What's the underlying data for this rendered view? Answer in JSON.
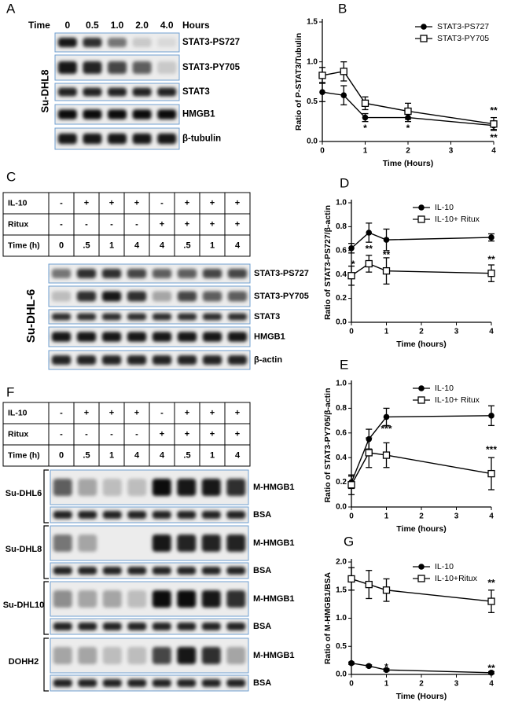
{
  "chart_data": [
    {
      "label": "B",
      "type": "line",
      "x": [
        0,
        0.5,
        1,
        2,
        4
      ],
      "xlim": [
        0,
        4
      ],
      "xticks": [
        0,
        1,
        2,
        3,
        4
      ],
      "ylim": [
        0,
        1.5
      ],
      "yticks": [
        {
          "value": 0,
          "label": "0.0"
        },
        {
          "value": 0.5,
          "label": "0.5"
        },
        {
          "value": 1,
          "label": "1.0"
        },
        {
          "value": 1.5,
          "label": "1.5"
        }
      ],
      "xlabel": "Time (Hours)",
      "ylabel": "Ratio of P-STAT3/Tubulin",
      "legend": "upper right",
      "series": [
        {
          "name": "STAT3-PS727",
          "color": "#000000",
          "marker": "filled-circle",
          "values": [
            0.62,
            0.58,
            0.3,
            0.3,
            0.2
          ],
          "errors": [
            0.12,
            0.12,
            0.05,
            0.05,
            0.05
          ]
        },
        {
          "name": "STAT3-PY705",
          "color": "#000000",
          "marker": "open-square",
          "values": [
            0.83,
            0.88,
            0.48,
            0.38,
            0.22
          ],
          "errors": [
            0.1,
            0.12,
            0.08,
            0.1,
            0.08
          ]
        }
      ],
      "annotations": [
        {
          "text": "*",
          "x": 1,
          "y": 0.16
        },
        {
          "text": "*",
          "x": 2,
          "y": 0.16
        },
        {
          "text": "**",
          "x": 4,
          "y": 0.38
        },
        {
          "text": "**",
          "x": 4,
          "y": 0.04
        }
      ]
    },
    {
      "label": "D",
      "type": "line",
      "x": [
        0,
        0.5,
        1,
        4
      ],
      "xlim": [
        0,
        4
      ],
      "xticks": [
        0,
        1,
        2,
        3,
        4
      ],
      "ylim": [
        0,
        1
      ],
      "yticks": [
        {
          "value": 0,
          "label": "0.0"
        },
        {
          "value": 0.2,
          "label": "0.2"
        },
        {
          "value": 0.4,
          "label": "0.4"
        },
        {
          "value": 0.6,
          "label": "0.6"
        },
        {
          "value": 0.8,
          "label": "0.8"
        },
        {
          "value": 1,
          "label": "1.0"
        }
      ],
      "xlabel": "Time (hours)",
      "ylabel": "Ratio of STAT3-PS727/β-actin",
      "legend": "upper right",
      "series": [
        {
          "name": "IL-10",
          "color": "#000000",
          "marker": "filled-circle",
          "values": [
            0.62,
            0.75,
            0.69,
            0.71
          ],
          "errors": [
            0.04,
            0.08,
            0.09,
            0.03
          ]
        },
        {
          "name": "IL-10+ Ritux",
          "color": "#000000",
          "marker": "open-square",
          "values": [
            0.39,
            0.49,
            0.43,
            0.41
          ],
          "errors": [
            0.08,
            0.07,
            0.11,
            0.07
          ]
        }
      ],
      "annotations": [
        {
          "text": "*",
          "x": 0.05,
          "y": 0.48
        },
        {
          "text": "**",
          "x": 0.5,
          "y": 0.61
        },
        {
          "text": "**",
          "x": 1,
          "y": 0.56
        },
        {
          "text": "**",
          "x": 4,
          "y": 0.52
        }
      ]
    },
    {
      "label": "E",
      "type": "line",
      "x": [
        0,
        0.5,
        1,
        4
      ],
      "xlim": [
        0,
        4
      ],
      "xticks": [
        0,
        1,
        2,
        3,
        4
      ],
      "ylim": [
        0,
        1
      ],
      "yticks": [
        {
          "value": 0,
          "label": "0.0"
        },
        {
          "value": 0.2,
          "label": "0.2"
        },
        {
          "value": 0.4,
          "label": "0.4"
        },
        {
          "value": 0.6,
          "label": "0.6"
        },
        {
          "value": 0.8,
          "label": "0.8"
        },
        {
          "value": 1,
          "label": "1.0"
        }
      ],
      "xlabel": "Time (hours)",
      "ylabel": "Ratio of STAT3-PY705/β-actin",
      "legend": "upper right",
      "series": [
        {
          "name": "IL-10",
          "color": "#000000",
          "marker": "filled-circle",
          "values": [
            0.2,
            0.55,
            0.73,
            0.74
          ],
          "errors": [
            0.05,
            0.08,
            0.07,
            0.08
          ]
        },
        {
          "name": "IL-10+ Ritux",
          "color": "#000000",
          "marker": "open-square",
          "values": [
            0.18,
            0.44,
            0.42,
            0.27
          ],
          "errors": [
            0.08,
            0.12,
            0.1,
            0.13
          ]
        }
      ],
      "annotations": [
        {
          "text": "***",
          "x": 1,
          "y": 0.63
        },
        {
          "text": "***",
          "x": 4,
          "y": 0.46
        }
      ]
    },
    {
      "label": "G",
      "type": "line",
      "x": [
        0,
        0.5,
        1,
        4
      ],
      "xlim": [
        0,
        4
      ],
      "xticks": [
        0,
        1,
        2,
        3,
        4
      ],
      "ylim": [
        0,
        2
      ],
      "yticks": [
        {
          "value": 0,
          "label": "0.0"
        },
        {
          "value": 0.5,
          "label": "0.5"
        },
        {
          "value": 1,
          "label": "1.0"
        },
        {
          "value": 1.5,
          "label": "1.5"
        },
        {
          "value": 2,
          "label": "2.0"
        }
      ],
      "xlabel": "Time (Hours)",
      "ylabel": "Ratio of M-HMGB1/BSA",
      "legend": "upper right",
      "series": [
        {
          "name": "IL-10",
          "color": "#000000",
          "marker": "filled-circle",
          "values": [
            0.2,
            0.15,
            0.08,
            0.03
          ],
          "errors": [
            0.02,
            0.02,
            0.02,
            0.02
          ]
        },
        {
          "name": "IL-10+Ritux",
          "color": "#000000",
          "marker": "open-square",
          "values": [
            1.7,
            1.6,
            1.5,
            1.3
          ],
          "errors": [
            0.2,
            0.25,
            0.2,
            0.2
          ]
        }
      ],
      "annotations": [
        {
          "text": "*",
          "x": 1,
          "y": 0.12
        },
        {
          "text": "**",
          "x": 4,
          "y": 1.62
        },
        {
          "text": "**",
          "x": 4,
          "y": 0.1
        }
      ]
    }
  ],
  "blots": [
    {
      "label": "A",
      "time_label": "Time",
      "lanes": [
        "0",
        "0.5",
        "1.0",
        "2.0",
        "4.0"
      ],
      "unit": "Hours",
      "cell_line": "Su-DHL8",
      "rows": [
        "STAT3-PS727",
        "STAT3-PY705",
        "STAT3",
        "HMGB1",
        "β-tubulin"
      ]
    },
    {
      "label": "C",
      "conditions": [
        {
          "name": "IL-10",
          "values": [
            "-",
            "+",
            "+",
            "+",
            "-",
            "+",
            "+",
            "+"
          ]
        },
        {
          "name": "Ritux",
          "values": [
            "-",
            "-",
            "-",
            "-",
            "+",
            "+",
            "+",
            "+"
          ]
        },
        {
          "name": "Time (h)",
          "values": [
            "0",
            ".5",
            "1",
            "4",
            "4",
            ".5",
            "1",
            "4"
          ]
        }
      ],
      "cell_line": "Su-DHL-6",
      "rows": [
        "STAT3-PS727",
        "STAT3-PY705",
        "STAT3",
        "HMGB1",
        "β-actin"
      ]
    },
    {
      "label": "F",
      "conditions": [
        {
          "name": "IL-10",
          "values": [
            "-",
            "+",
            "+",
            "+",
            "-",
            "+",
            "+",
            "+"
          ]
        },
        {
          "name": "Ritux",
          "values": [
            "-",
            "-",
            "-",
            "-",
            "+",
            "+",
            "+",
            "+"
          ]
        },
        {
          "name": "Time (h)",
          "values": [
            "0",
            ".5",
            "1",
            "4",
            "4",
            ".5",
            "1",
            "4"
          ]
        }
      ],
      "groups": [
        {
          "cell_line": "Su-DHL6",
          "rows": [
            "M-HMGB1",
            "BSA"
          ]
        },
        {
          "cell_line": "Su-DHL8",
          "rows": [
            "M-HMGB1",
            "BSA"
          ]
        },
        {
          "cell_line": "Su-DHL10",
          "rows": [
            "M-HMGB1",
            "BSA"
          ]
        },
        {
          "cell_line": "DOHH2",
          "rows": [
            "M-HMGB1",
            "BSA"
          ]
        }
      ]
    }
  ]
}
